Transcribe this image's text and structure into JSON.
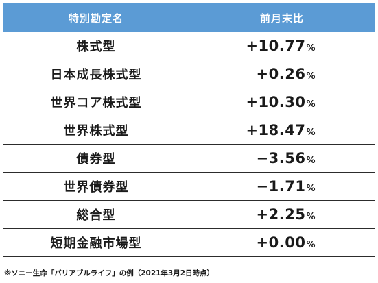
{
  "table": {
    "headers": [
      "特別勘定名",
      "前月末比"
    ],
    "rows": [
      {
        "name": "株式型",
        "value": "+10.77",
        "unit": "%"
      },
      {
        "name": "日本成長株式型",
        "value": "+0.26",
        "unit": "%"
      },
      {
        "name": "世界コア株式型",
        "value": "+10.30",
        "unit": "%"
      },
      {
        "name": "世界株式型",
        "value": "+18.47",
        "unit": "%"
      },
      {
        "name": "債券型",
        "value": "−3.56",
        "unit": "%"
      },
      {
        "name": "世界債券型",
        "value": "−1.71",
        "unit": "%"
      },
      {
        "name": "総合型",
        "value": "+2.25",
        "unit": "%"
      },
      {
        "name": "短期金融市場型",
        "value": "+0.00",
        "unit": "%"
      }
    ]
  },
  "footnote": "※ソニー生命「バリアブルライフ」の例（2021年3月2日時点）",
  "colors": {
    "header_bg": "#5b9bd5",
    "header_text": "#ffffff",
    "border": "#2c2c2c"
  }
}
